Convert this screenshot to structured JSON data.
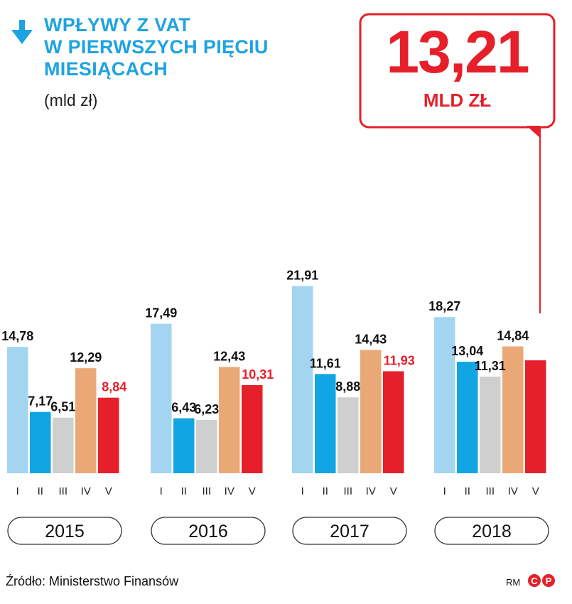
{
  "title_lines": [
    "Wpływy z VAT",
    "w pierwszych pięciu",
    "miesiącach"
  ],
  "unit": "(mld zł)",
  "callout": {
    "value": "13,21",
    "unit": "MLD ZŁ"
  },
  "source": "Źródło: Ministerstwo Finansów",
  "credit": "RM",
  "colors": {
    "title": "#1fa3e0",
    "bars": [
      "#a3d5f0",
      "#12a5e3",
      "#cfcfcf",
      "#eba877",
      "#e5202a"
    ],
    "highlight_label": "#e5202a",
    "label": "#111111"
  },
  "chart_data": {
    "type": "bar",
    "title": "Wpływy z VAT w pierwszych pięciu miesiącach",
    "ylabel": "mld zł",
    "categories": [
      "I",
      "II",
      "III",
      "IV",
      "V"
    ],
    "groups": [
      {
        "year": "2015",
        "values": [
          14.78,
          7.17,
          6.51,
          12.29,
          8.84
        ],
        "labels": [
          "14,78",
          "7,17",
          "6,51",
          "12,29",
          "8,84"
        ]
      },
      {
        "year": "2016",
        "values": [
          17.49,
          6.43,
          6.23,
          12.43,
          10.31
        ],
        "labels": [
          "17,49",
          "6,43",
          "6,23",
          "12,43",
          "10,31"
        ]
      },
      {
        "year": "2017",
        "values": [
          21.91,
          11.61,
          8.88,
          14.43,
          11.93
        ],
        "labels": [
          "21,91",
          "11,61",
          "8,88",
          "14,43",
          "11,93"
        ]
      },
      {
        "year": "2018",
        "values": [
          18.27,
          13.04,
          11.31,
          14.84,
          13.21
        ],
        "labels": [
          "18,27",
          "13,04",
          "11,31",
          "14,84",
          null
        ]
      }
    ],
    "ylim": [
      0,
      22
    ],
    "grid": false,
    "legend": "none"
  }
}
